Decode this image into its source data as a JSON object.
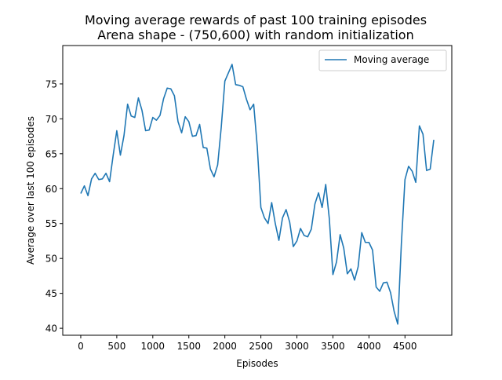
{
  "chart_data": {
    "type": "line",
    "title": [
      "Moving average rewards of past 100 training episodes",
      "Arena shape - (750,600) with random initialization"
    ],
    "xlabel": "Episodes",
    "ylabel": "Average over last 100 episodes",
    "xlim": [
      -250,
      5150
    ],
    "ylim": [
      39,
      80.5
    ],
    "xticks": [
      "0",
      "500",
      "1000",
      "1500",
      "2000",
      "2500",
      "3000",
      "3500",
      "4000",
      "4500"
    ],
    "yticks": [
      "40",
      "45",
      "50",
      "55",
      "60",
      "65",
      "70",
      "75"
    ],
    "grid": false,
    "legend_position": "upper right",
    "series": [
      {
        "name": "Moving average",
        "color": "#1f77b4",
        "x": [
          0,
          50,
          100,
          150,
          200,
          250,
          300,
          350,
          400,
          450,
          500,
          550,
          600,
          650,
          700,
          750,
          800,
          850,
          900,
          950,
          1000,
          1050,
          1100,
          1150,
          1200,
          1250,
          1300,
          1350,
          1400,
          1450,
          1500,
          1550,
          1600,
          1650,
          1700,
          1750,
          1800,
          1850,
          1900,
          1950,
          2000,
          2050,
          2100,
          2150,
          2200,
          2250,
          2300,
          2350,
          2400,
          2450,
          2500,
          2550,
          2600,
          2650,
          2700,
          2750,
          2800,
          2850,
          2900,
          2950,
          3000,
          3050,
          3100,
          3150,
          3200,
          3250,
          3300,
          3350,
          3400,
          3450,
          3500,
          3550,
          3600,
          3650,
          3700,
          3750,
          3800,
          3850,
          3900,
          3950,
          4000,
          4050,
          4100,
          4150,
          4200,
          4250,
          4300,
          4350,
          4400,
          4450,
          4500,
          4550,
          4600,
          4650,
          4700,
          4750,
          4800,
          4850,
          4900
        ],
        "values": [
          59.3,
          60.4,
          59.0,
          61.4,
          62.2,
          61.3,
          61.4,
          62.2,
          61.0,
          64.8,
          68.3,
          64.8,
          67.6,
          72.1,
          70.4,
          70.2,
          73.0,
          71.2,
          68.3,
          68.4,
          70.2,
          69.8,
          70.5,
          72.9,
          74.4,
          74.3,
          73.3,
          69.6,
          68.0,
          70.3,
          69.6,
          67.5,
          67.6,
          69.2,
          65.9,
          65.8,
          62.8,
          61.7,
          63.4,
          68.8,
          75.4,
          76.6,
          77.8,
          74.9,
          74.8,
          74.6,
          72.8,
          71.3,
          72.1,
          66.0,
          57.3,
          55.8,
          55.0,
          58.0,
          55.0,
          52.6,
          55.8,
          57.0,
          55.2,
          51.7,
          52.5,
          54.3,
          53.3,
          53.1,
          54.2,
          57.8,
          59.4,
          57.3,
          60.6,
          55.7,
          47.7,
          49.5,
          53.4,
          51.5,
          47.8,
          48.5,
          46.9,
          48.8,
          53.7,
          52.3,
          52.3,
          51.2,
          45.9,
          45.3,
          46.5,
          46.6,
          45.1,
          42.4,
          40.6,
          52.1,
          61.3,
          63.2,
          62.5,
          60.9,
          69.0,
          67.8,
          62.6,
          62.8,
          67.0
        ]
      }
    ]
  }
}
